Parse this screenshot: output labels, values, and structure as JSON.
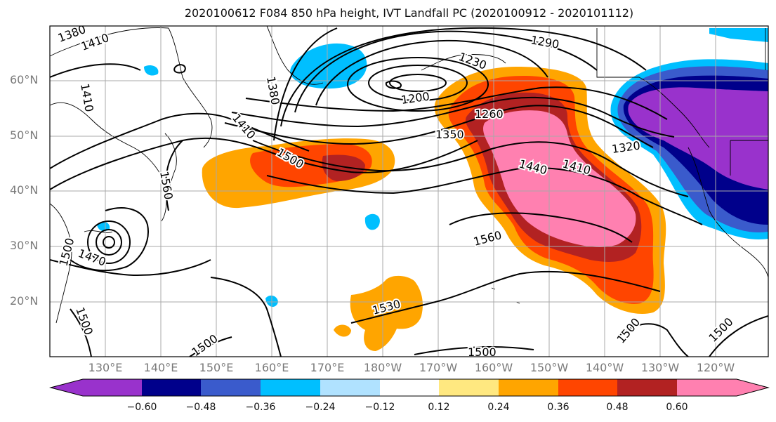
{
  "title": "2020100612 F084 850 hPa height, IVT Landfall PC (2020100912 - 2020101112)",
  "latitude_labels": [
    "60°N",
    "50°N",
    "40°N",
    "30°N",
    "20°N"
  ],
  "longitude_labels": [
    "130°E",
    "140°E",
    "150°E",
    "160°E",
    "170°E",
    "180°W",
    "170°W",
    "160°W",
    "150°W",
    "140°W",
    "130°W",
    "120°W"
  ],
  "contour_labels": [
    "1380",
    "1410",
    "1410",
    "1380",
    "1290",
    "1230",
    "1200",
    "1260",
    "1350",
    "1410",
    "1320",
    "1440",
    "1410",
    "1500",
    "1560",
    "1560",
    "1500",
    "1470",
    "1500",
    "1530",
    "1500",
    "1500",
    "1500",
    "1500"
  ],
  "colorbar": {
    "ticks": [
      "−0.60",
      "−0.48",
      "−0.36",
      "−0.24",
      "−0.12",
      "0.12",
      "0.24",
      "0.36",
      "0.48",
      "0.60"
    ],
    "colors": [
      "#9932cc",
      "#00008b",
      "#3a5bcc",
      "#00bfff",
      "#b0e2ff",
      "#ffffff",
      "#ffe880",
      "#ffa500",
      "#ff4500",
      "#b22222",
      "#ff80b0"
    ]
  }
}
